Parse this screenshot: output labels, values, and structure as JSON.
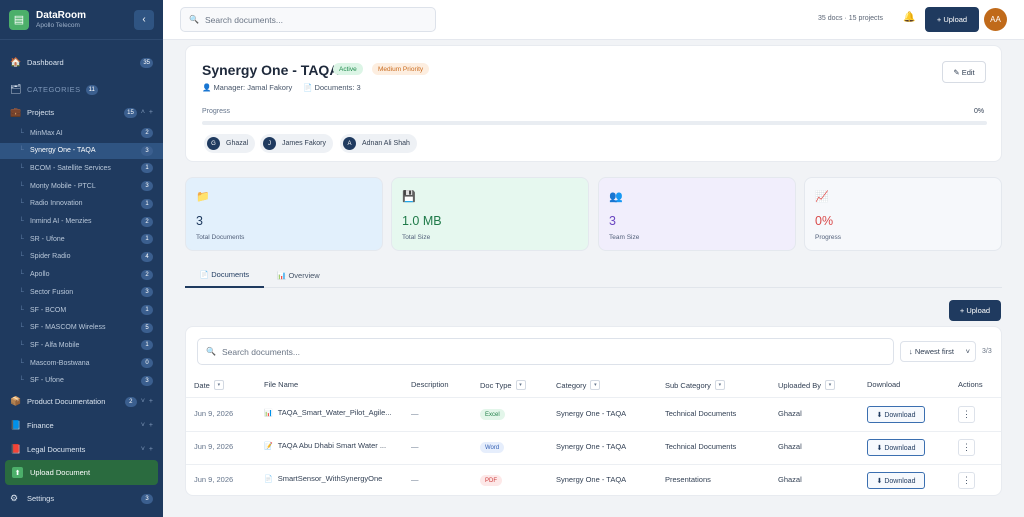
{
  "brand": {
    "title": "DataRoom",
    "subtitle": "Apollo Telecom",
    "logo_icon": "archive-icon"
  },
  "sidebar": {
    "dashboard": {
      "label": "Dashboard",
      "count": "35"
    },
    "categories": {
      "label": "CATEGORIES",
      "count": "11"
    },
    "projects": {
      "label": "Projects",
      "count": "15"
    },
    "project_items": [
      {
        "label": "MinMax AI",
        "count": "2",
        "active": false
      },
      {
        "label": "Synergy One - TAQA",
        "count": "3",
        "active": true
      },
      {
        "label": "BCOM - Satellite Services",
        "count": "1",
        "active": false
      },
      {
        "label": "Monty Mobile - PTCL",
        "count": "3",
        "active": false
      },
      {
        "label": "Radio Innovation",
        "count": "1",
        "active": false
      },
      {
        "label": "Inmind AI - Menzies",
        "count": "2",
        "active": false
      },
      {
        "label": "SR - Ufone",
        "count": "1",
        "active": false
      },
      {
        "label": "Spider Radio",
        "count": "4",
        "active": false
      },
      {
        "label": "Apollo",
        "count": "2",
        "active": false
      },
      {
        "label": "Sector Fusion",
        "count": "3",
        "active": false
      },
      {
        "label": "SF - BCOM",
        "count": "1",
        "active": false
      },
      {
        "label": "SF - MASCOM Wireless",
        "count": "5",
        "active": false
      },
      {
        "label": "SF - Alfa Mobile",
        "count": "1",
        "active": false
      },
      {
        "label": "Mascom-Bostwana",
        "count": "0",
        "active": false
      },
      {
        "label": "SF - Ufone",
        "count": "3",
        "active": false
      }
    ],
    "product_documentation": {
      "label": "Product Documentation",
      "count": "2"
    },
    "finance": {
      "label": "Finance"
    },
    "legal": {
      "label": "Legal Documents"
    },
    "upload_document": "Upload Document",
    "settings": {
      "label": "Settings",
      "count": "3"
    }
  },
  "topbar": {
    "search_placeholder": "Search documents...",
    "stats": "35 docs · 15 projects",
    "upload_label": "+ Upload",
    "avatar_initials": "AA"
  },
  "project": {
    "title": "Synergy One - TAQA",
    "status": "Active",
    "priority": "Medium Priority",
    "manager": "Manager: Jamal Fakory",
    "documents": "Documents: 3",
    "edit_label": "✎ Edit",
    "progress_label": "Progress",
    "progress_value": "0%",
    "progress_fraction": 0,
    "members": [
      {
        "initial": "G",
        "name": "Ghazal"
      },
      {
        "initial": "J",
        "name": "James Fakory"
      },
      {
        "initial": "A",
        "name": "Adnan Ali Shah"
      }
    ]
  },
  "stats_cards": [
    {
      "icon": "folder-icon",
      "value": "3",
      "label": "Total Documents",
      "bg": "#e2f0fc",
      "color": "#1e3a5f"
    },
    {
      "icon": "disk-icon",
      "value": "1.0 MB",
      "label": "Total Size",
      "bg": "#e6f8ef",
      "color": "#1f7a49"
    },
    {
      "icon": "team-icon",
      "value": "3",
      "label": "Team Size",
      "bg": "#f1eefc",
      "color": "#6b46c1"
    },
    {
      "icon": "chart-icon",
      "value": "0%",
      "label": "Progress",
      "bg": "#f6f8fb",
      "color": "#d94a4a"
    }
  ],
  "tabs": {
    "documents": "Documents",
    "overview": "Overview"
  },
  "documents_panel": {
    "upload_label": "+ Upload",
    "search_placeholder": "Search documents...",
    "sort_value": "↓ Newest first",
    "count": "3/3",
    "headers": {
      "date": "Date",
      "file_name": "File Name",
      "description": "Description",
      "doc_type": "Doc Type",
      "category": "Category",
      "sub_category": "Sub Category",
      "uploaded_by": "Uploaded By",
      "download": "Download",
      "actions": "Actions"
    },
    "rows": [
      {
        "date": "Jun 9, 2026",
        "file_name": "TAQA_Smart_Water_Pilot_Agile...",
        "description": "—",
        "doc_type": "Excel",
        "category": "Synergy One - TAQA",
        "sub_category": "Technical Documents",
        "uploaded_by": "Ghazal",
        "download": "⬇ Download"
      },
      {
        "date": "Jun 9, 2026",
        "file_name": "TAQA Abu Dhabi Smart Water ...",
        "description": "—",
        "doc_type": "Word",
        "category": "Synergy One - TAQA",
        "sub_category": "Technical Documents",
        "uploaded_by": "Ghazal",
        "download": "⬇ Download"
      },
      {
        "date": "Jun 9, 2026",
        "file_name": "SmartSensor_WithSynergyOne",
        "description": "—",
        "doc_type": "PDF",
        "category": "Synergy One - TAQA",
        "sub_category": "Presentations",
        "uploaded_by": "Ghazal",
        "download": "⬇ Download"
      }
    ]
  },
  "colors": {
    "sidebar": "#1f3a5f",
    "accent": "#1f3a5f",
    "success": "#2a6b3f"
  }
}
